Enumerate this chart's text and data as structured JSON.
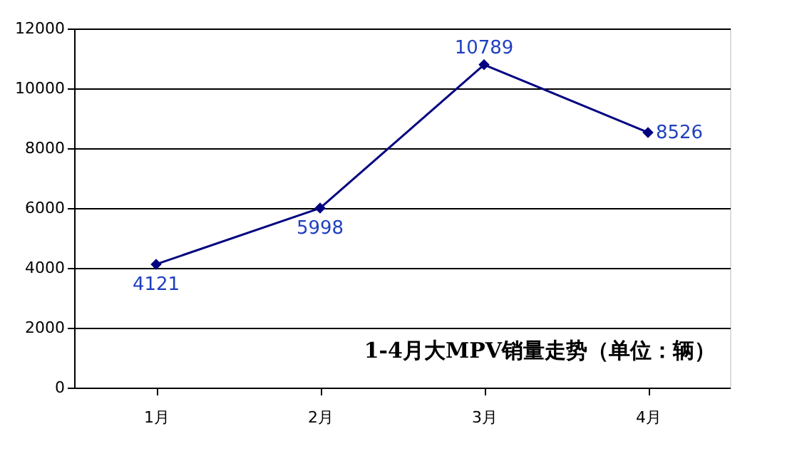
{
  "chart_data": {
    "type": "line",
    "title": "1-4月大MPV销量走势（单位：辆）",
    "categories": [
      "1月",
      "2月",
      "3月",
      "4月"
    ],
    "series": [
      {
        "color": "#000080",
        "values": [
          4121,
          5998,
          10789,
          8526
        ]
      }
    ],
    "ylim": [
      0,
      12000
    ],
    "yticks": [
      0,
      2000,
      4000,
      6000,
      8000,
      10000,
      12000
    ],
    "grid": "y",
    "marker": "diamond",
    "line_style": "solid",
    "data_labels": true
  }
}
